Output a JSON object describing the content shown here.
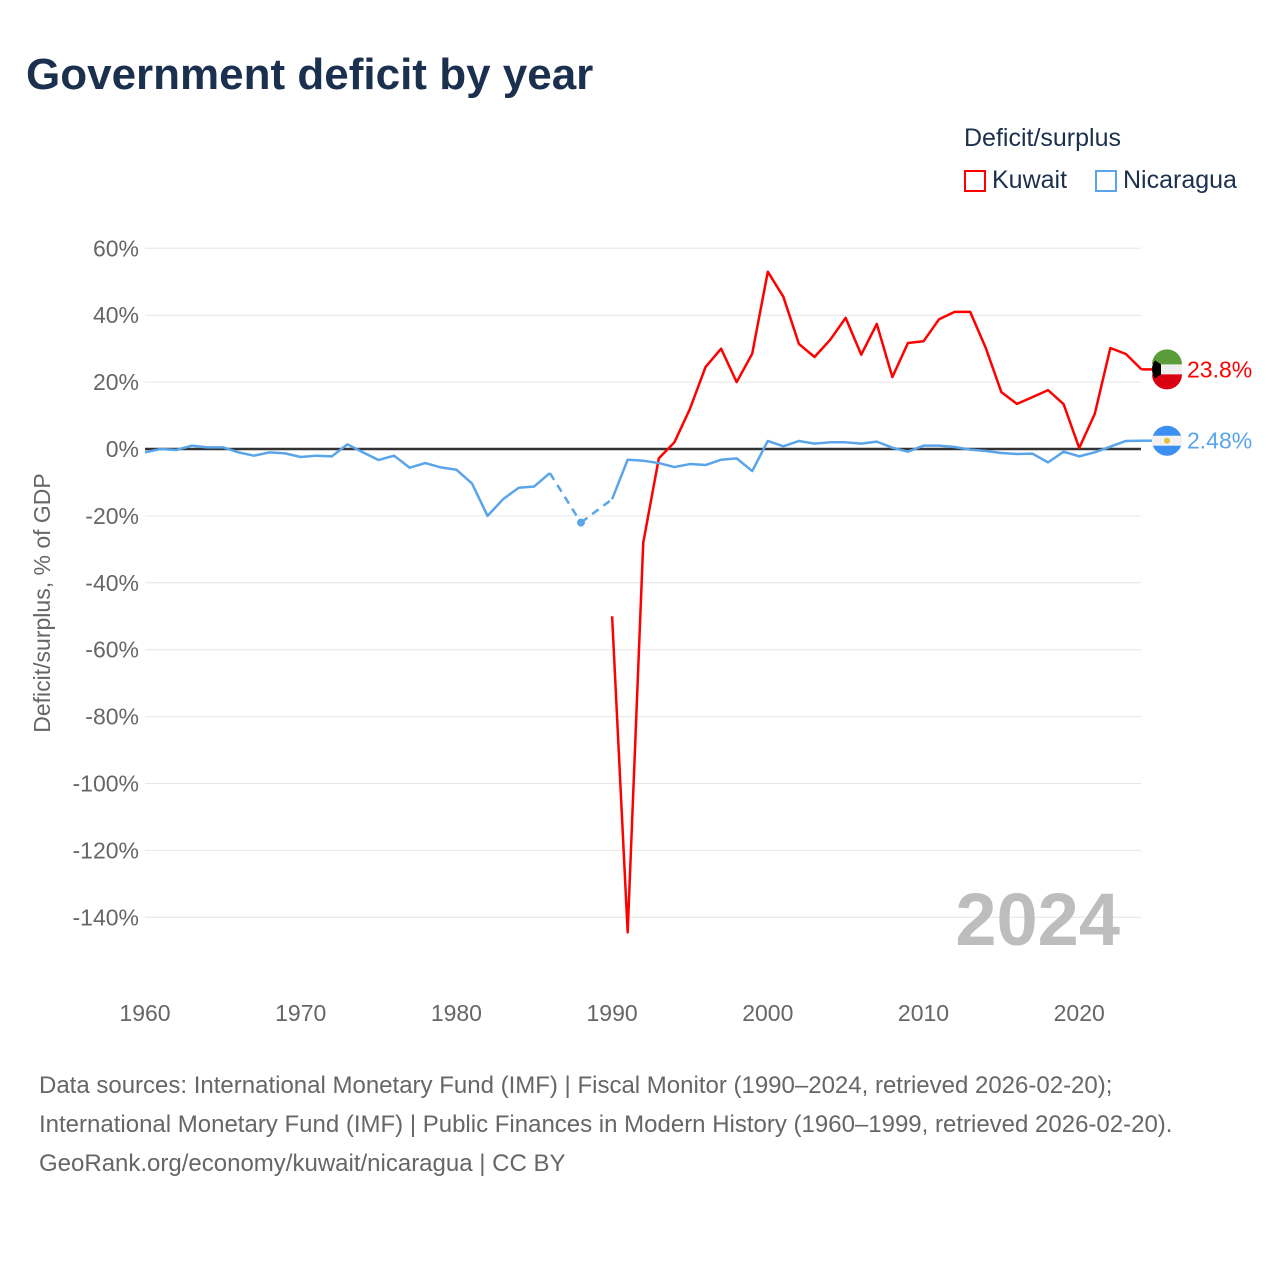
{
  "title": "Government deficit by year",
  "legend_title": "Deficit/surplus",
  "footer": {
    "sources": "Data sources: International Monetary Fund (IMF) | Fiscal Monitor (1990–2024, retrieved 2026-02-20); International Monetary Fund (IMF) | Public Finances in Modern History (1960–1999, retrieved 2026-02-20).",
    "credit": "GeoRank.org/economy/kuwait/nicaragua | CC BY"
  },
  "chart_data": {
    "type": "line",
    "title": "Government deficit by year",
    "ylabel": "Deficit/surplus, % of GDP",
    "xlabel": "",
    "xlim": [
      1960,
      2024
    ],
    "ylim": [
      -150,
      60
    ],
    "yticks": [
      60,
      40,
      20,
      0,
      -20,
      -40,
      -60,
      -80,
      -100,
      -120,
      -140
    ],
    "ytick_labels": [
      "60%",
      "40%",
      "20%",
      "0%",
      "-20%",
      "-40%",
      "-60%",
      "-80%",
      "-100%",
      "-120%",
      "-140%"
    ],
    "xticks": [
      1960,
      1970,
      1980,
      1990,
      2000,
      2010,
      2020
    ],
    "xtick_labels": [
      "1960",
      "1970",
      "1980",
      "1990",
      "2000",
      "2010",
      "2020"
    ],
    "year_label": "2024",
    "grid": true,
    "legend_placement": "top-right",
    "series": [
      {
        "name": "Kuwait",
        "color": "#ff0000",
        "end_label": "23.8%",
        "start": 1990,
        "values": [
          -50,
          -144.5,
          -28,
          -2.8,
          2,
          12,
          24.5,
          30,
          20,
          28.5,
          53,
          45.5,
          31.4,
          27.5,
          32.6,
          39.2,
          28.2,
          37.4,
          21.5,
          31.7,
          32.2,
          38.8,
          41,
          41,
          30.2,
          17,
          13.5,
          15.5,
          17.6,
          13.4,
          0.3,
          10.5,
          30.2,
          28.4,
          23.8
        ]
      },
      {
        "name": "Nicaragua",
        "color": "#5aa5ea",
        "end_label": "2.48%",
        "start": 1960,
        "values": [
          -1,
          0,
          -0.3,
          1,
          0.5,
          0.5,
          -1,
          -2,
          -1,
          -1.3,
          -2.4,
          -2,
          -2.2,
          1.4,
          -1,
          -3.3,
          -2,
          -5.6,
          -4.2,
          -5.5,
          -6.2,
          -10.3,
          -20,
          -15,
          -11.6,
          -11.2,
          -7.2,
          null,
          -22,
          null,
          -15,
          -3.2,
          -3.5,
          -4.2,
          -5.4,
          -4.5,
          -4.8,
          -3.2,
          -2.8,
          -6.6,
          2.4,
          0.8,
          2.4,
          1.6,
          2,
          2,
          1.6,
          2.2,
          0.4,
          -0.8,
          1,
          1,
          0.6,
          -0.2,
          -0.6,
          -1.2,
          -1.5,
          -1.4,
          -4,
          -0.8,
          -2.2,
          -1,
          0.7,
          2.4,
          2.48
        ]
      }
    ]
  }
}
